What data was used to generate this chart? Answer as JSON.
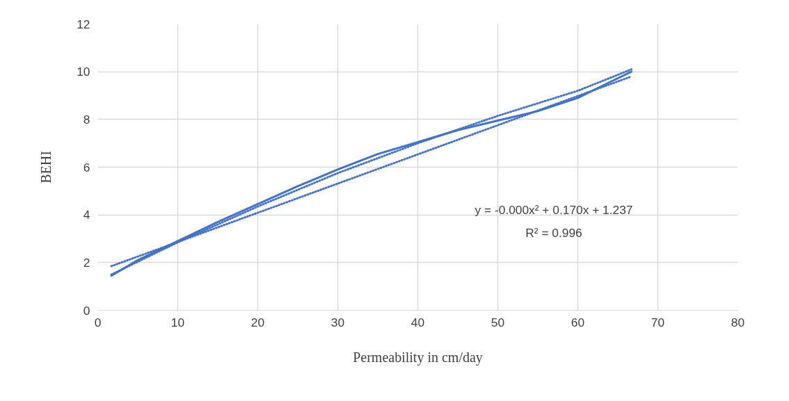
{
  "chart_data": {
    "type": "line",
    "xlabel": "Permeability in cm/day",
    "ylabel": "BEHI",
    "xlim": [
      0,
      80
    ],
    "xticks": [
      0,
      10,
      20,
      30,
      40,
      50,
      60,
      70,
      80
    ],
    "ylim": [
      0,
      12
    ],
    "yticks": [
      0,
      2,
      4,
      6,
      8,
      10,
      12
    ],
    "grid": true,
    "series": [
      {
        "color": "#4472c4",
        "line_style": "solid",
        "x": [
          1.7,
          5,
          10,
          15,
          20,
          25,
          30,
          35,
          40,
          45,
          50,
          55,
          60,
          63,
          66.7
        ],
        "values": [
          1.45,
          2.1,
          2.9,
          3.7,
          4.45,
          5.2,
          5.9,
          6.55,
          7.05,
          7.55,
          7.95,
          8.35,
          8.9,
          9.4,
          10.0
        ]
      },
      {
        "color": "#4472c4",
        "line_style": "dotted",
        "x": [
          1.7,
          10,
          20,
          30,
          40,
          50,
          60,
          66.7
        ],
        "values": [
          1.5,
          2.85,
          4.35,
          5.75,
          7.0,
          8.15,
          9.2,
          10.1
        ]
      },
      {
        "color": "#4472c4",
        "line_style": "dotted",
        "x": [
          1.7,
          66.7
        ],
        "values": [
          1.85,
          9.8
        ]
      }
    ],
    "annotations": [
      "y = -0.000x² + 0.170x + 1.237",
      "R² = 0.996"
    ]
  }
}
